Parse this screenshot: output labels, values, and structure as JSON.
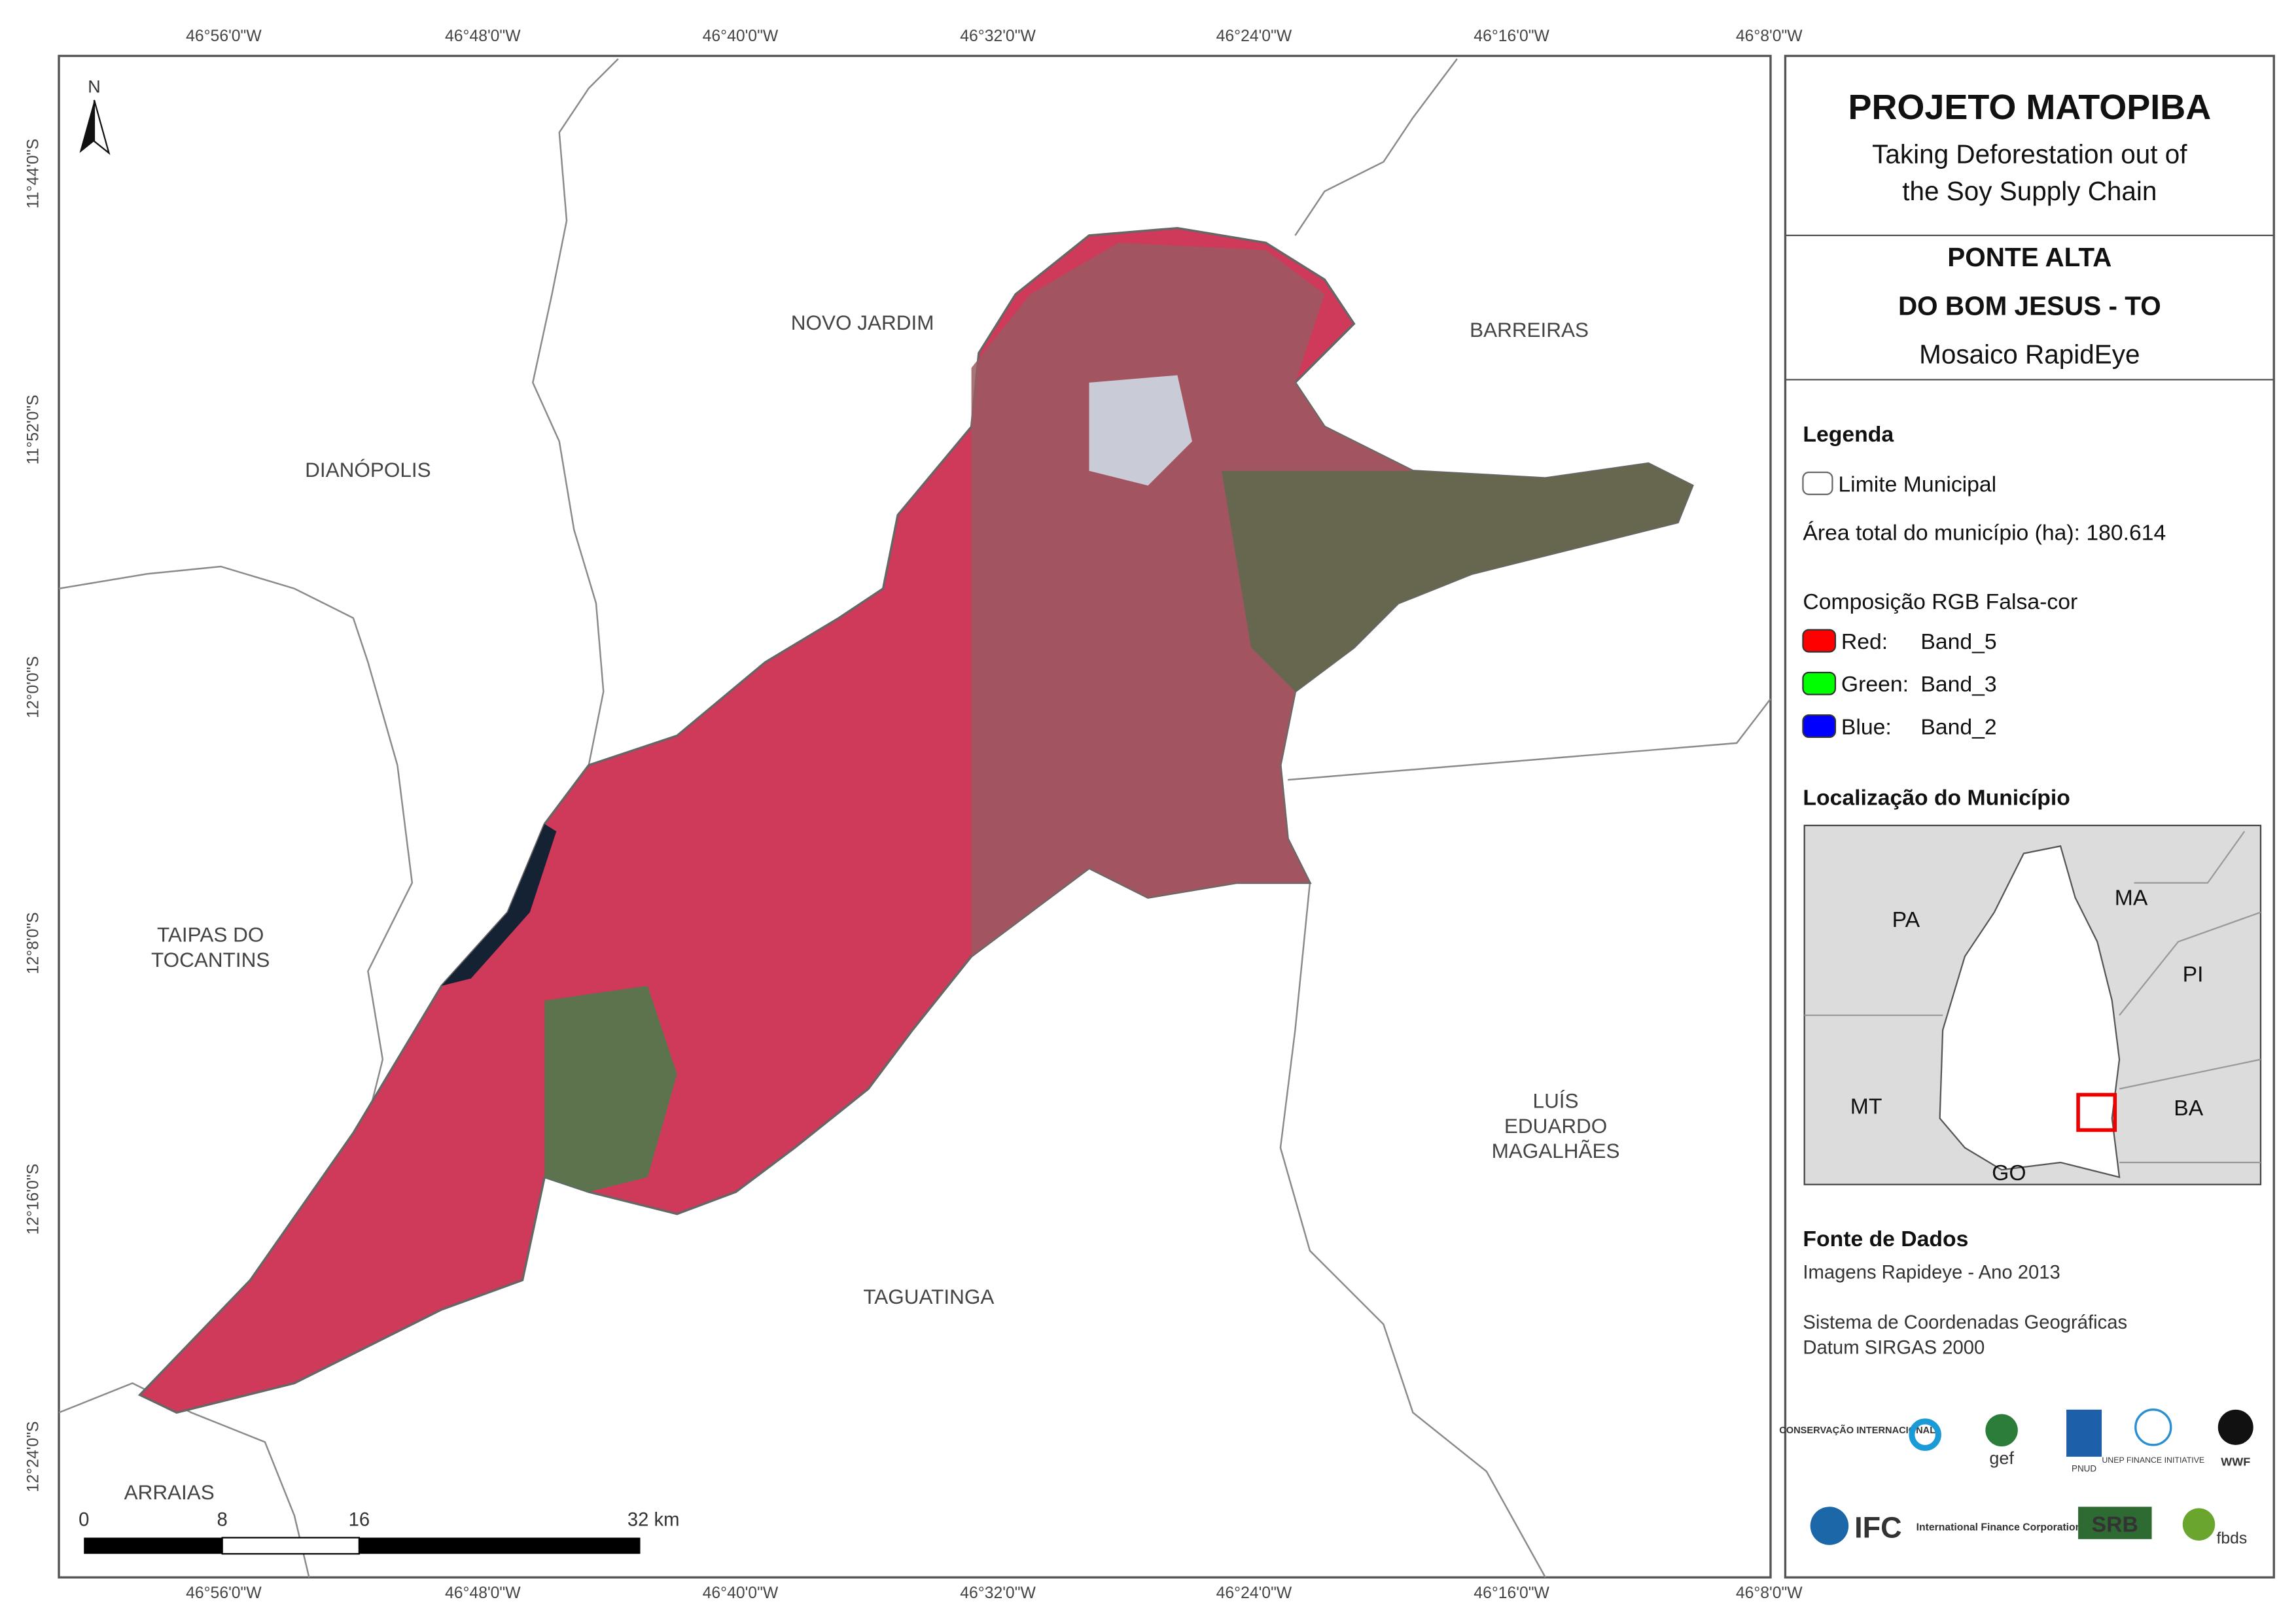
{
  "map": {
    "longitudes": [
      "46°56'0\"W",
      "46°48'0\"W",
      "46°40'0\"W",
      "46°32'0\"W",
      "46°24'0\"W",
      "46°16'0\"W",
      "46°8'0\"W"
    ],
    "latitudes": [
      "11°44'0\"S",
      "11°52'0\"S",
      "12°0'0\"S",
      "12°8'0\"S",
      "12°16'0\"S",
      "12°24'0\"S"
    ],
    "north": "N",
    "places": {
      "novo_jardim": [
        "NOVO JARDIM"
      ],
      "barreiras": [
        "BARREIRAS"
      ],
      "dianopolis": [
        "DIANÓPOLIS"
      ],
      "taipas": [
        "TAIPAS DO",
        "TOCANTINS"
      ],
      "luis_eduardo": [
        "LUÍS",
        "EDUARDO",
        "MAGALHÃES"
      ],
      "taguatinga": [
        "TAGUATINGA"
      ],
      "arraias": [
        "ARRAIAS"
      ]
    },
    "scale_bar": [
      "0",
      "8",
      "16",
      "32 km"
    ]
  },
  "panel": {
    "title": "PROJETO MATOPIBA",
    "subtitle": [
      "Taking Deforestation out of",
      "the Soy Supply Chain"
    ],
    "municipality": [
      "PONTE ALTA",
      "DO BOM JESUS - TO"
    ],
    "mosaic": "Mosaico RapidEye",
    "legend": {
      "title": "Legenda",
      "boundary": "Limite Municipal",
      "area": "Área total do município (ha): 180.614",
      "composition": "Composição RGB Falsa-cor",
      "bands": [
        {
          "label": "Red:",
          "band": "Band_5"
        },
        {
          "label": "Green:",
          "band": "Band_3"
        },
        {
          "label": "Blue:",
          "band": "Band_2"
        }
      ]
    },
    "location": {
      "title": "Localização do Município",
      "states": [
        "PA",
        "MA",
        "PI",
        "MT",
        "BA",
        "GO"
      ]
    },
    "sources": {
      "title": "Fonte de Dados",
      "lines": [
        "Imagens Rapideye - Ano 2013",
        "Sistema de Coordenadas Geográficas",
        "Datum SIRGAS 2000"
      ]
    },
    "logos": [
      "CONSERVAÇÃO INTERNACIONAL",
      "gef",
      "PNUD",
      "UNEP FINANCE INITIATIVE",
      "WWF",
      "IFC",
      "International Finance Corporation",
      "SRB",
      "fbds"
    ]
  }
}
